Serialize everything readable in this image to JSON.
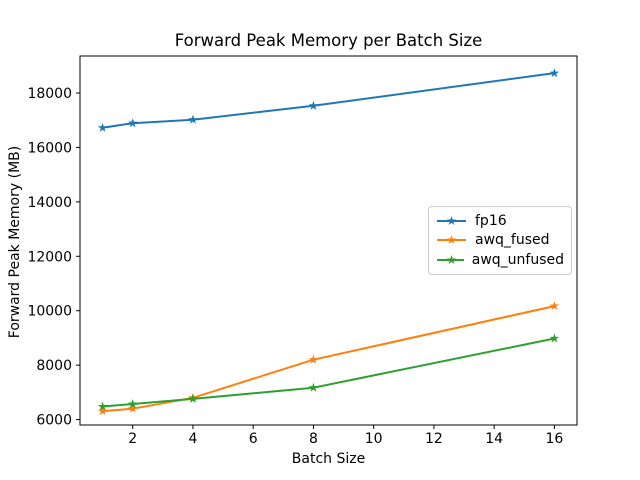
{
  "chart_data": {
    "type": "line",
    "title": "Forward Peak Memory per Batch Size",
    "xlabel": "Batch Size",
    "ylabel": "Forward Peak Memory (MB)",
    "x": [
      1,
      2,
      4,
      8,
      16
    ],
    "series": [
      {
        "name": "fp16",
        "color": "#1f77b4",
        "values": [
          16720,
          16890,
          17020,
          17530,
          18730
        ]
      },
      {
        "name": "awq_fused",
        "color": "#ff7f0e",
        "values": [
          6310,
          6400,
          6800,
          8200,
          10170
        ]
      },
      {
        "name": "awq_unfused",
        "color": "#2ca02c",
        "values": [
          6480,
          6570,
          6760,
          7170,
          8980
        ]
      }
    ],
    "xticks": [
      2,
      4,
      6,
      8,
      10,
      12,
      14,
      16
    ],
    "yticks": [
      6000,
      8000,
      10000,
      12000,
      14000,
      16000,
      18000
    ],
    "xlim": [
      0.25,
      16.75
    ],
    "ylim": [
      5800,
      19360
    ],
    "marker": "star",
    "grid": false,
    "legend_position": "center-right",
    "axis_color": "#000000",
    "tick_font_px": 14
  }
}
